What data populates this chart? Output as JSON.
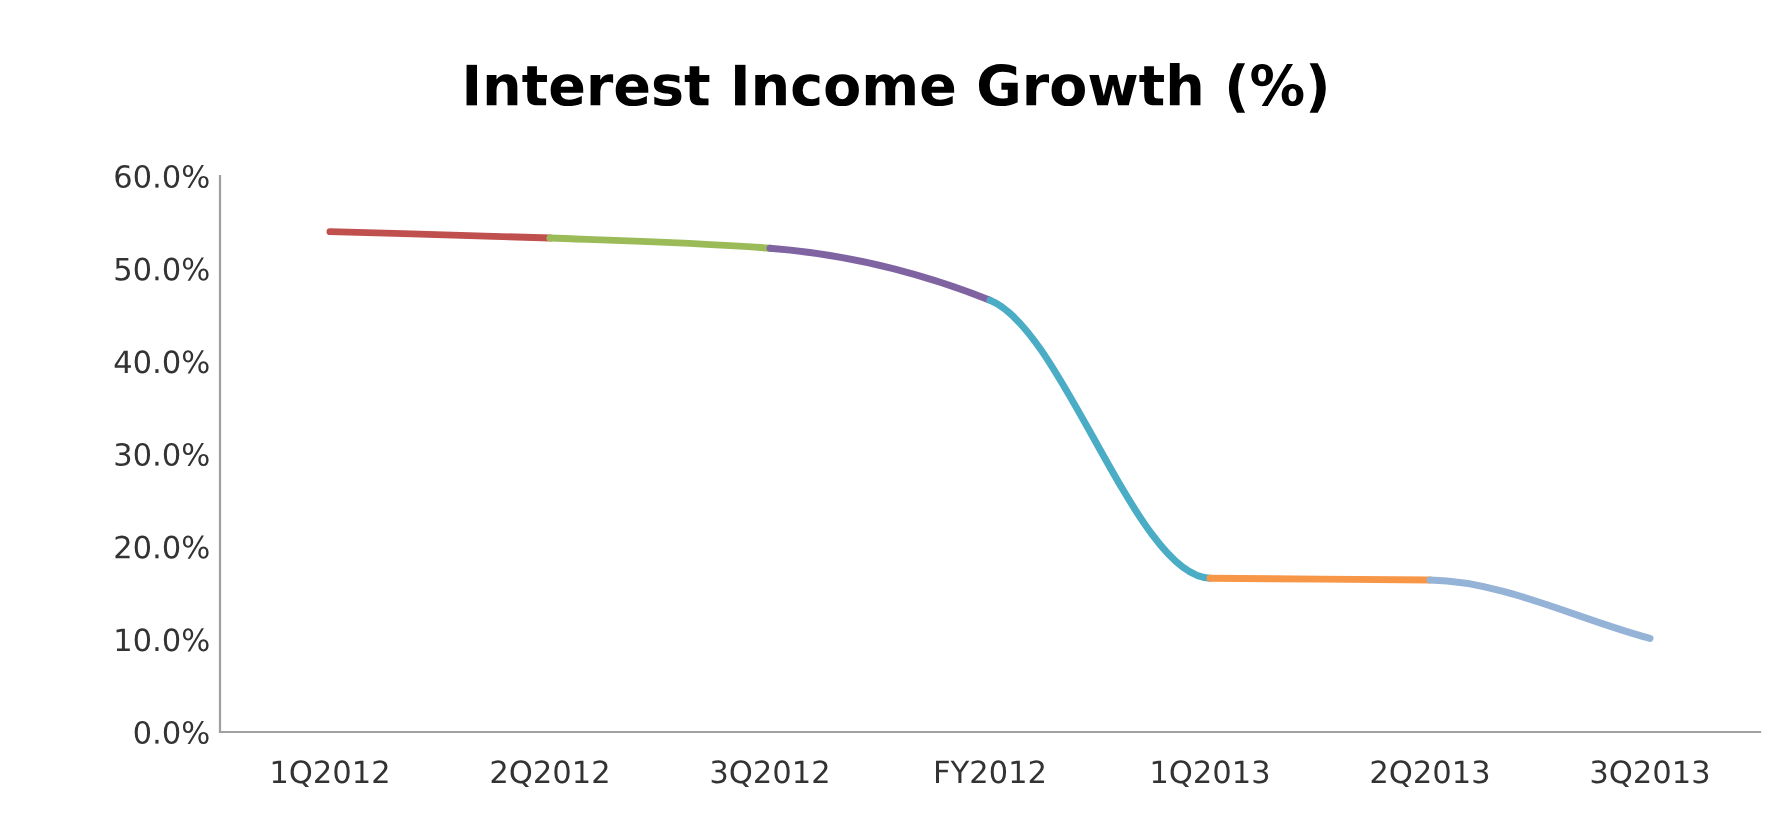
{
  "chart_data": {
    "type": "line",
    "title": "Interest Income Growth (%)",
    "categories": [
      "1Q2012",
      "2Q2012",
      "3Q2012",
      "FY2012",
      "1Q2013",
      "2Q2013",
      "3Q2013"
    ],
    "series": [
      {
        "color": "#c0504d",
        "values": [
          54.0,
          53.3,
          null,
          null,
          null,
          null,
          null
        ]
      },
      {
        "color": "#9bbb59",
        "values": [
          null,
          53.3,
          52.2,
          null,
          null,
          null,
          null
        ]
      },
      {
        "color": "#8064a2",
        "values": [
          null,
          null,
          52.2,
          46.6,
          null,
          null,
          null
        ]
      },
      {
        "color": "#4bacc6",
        "values": [
          null,
          null,
          null,
          46.6,
          16.6,
          null,
          null
        ]
      },
      {
        "color": "#f79646",
        "values": [
          null,
          null,
          null,
          null,
          16.6,
          16.4,
          null
        ]
      },
      {
        "color": "#95b3d7",
        "values": [
          null,
          null,
          null,
          null,
          null,
          16.4,
          10.1
        ]
      }
    ],
    "ylim": [
      0,
      60
    ],
    "yticks": [
      {
        "value": 0,
        "label": "0.0%"
      },
      {
        "value": 10,
        "label": "10.0%"
      },
      {
        "value": 20,
        "label": "20.0%"
      },
      {
        "value": 30,
        "label": "30.0%"
      },
      {
        "value": 40,
        "label": "40.0%"
      },
      {
        "value": 50,
        "label": "50.0%"
      },
      {
        "value": 60,
        "label": "60.0%"
      }
    ],
    "grid": false,
    "legend": false,
    "marker": "none",
    "line_style": "solid"
  }
}
